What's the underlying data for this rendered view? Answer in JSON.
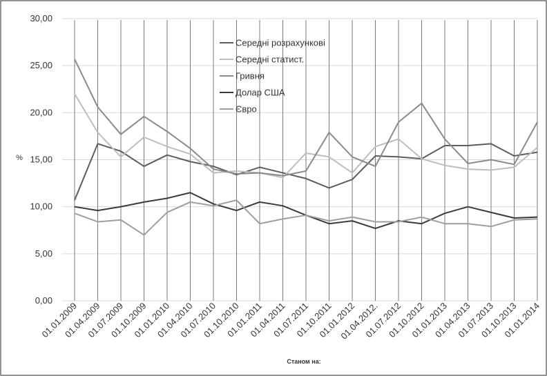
{
  "chart_data": {
    "type": "line",
    "xlabel": "Станом на:",
    "ylabel": "%",
    "ylim": [
      0,
      30
    ],
    "yticks": [
      "0,00",
      "5,00",
      "10,00",
      "15,00",
      "20,00",
      "25,00",
      "30,00"
    ],
    "categories": [
      "01.01.2009",
      "01.04.2009",
      "01.07.2009",
      "01.10.2009",
      "01.01.2010",
      "01.04.2010",
      "01.07.2010",
      "01.10.2010",
      "01.01.2011",
      "01.04.2011",
      "01.07.2011",
      "01.10.2011",
      "01.01.2012",
      "01.04.2012.",
      "01.07.2012",
      "01.10.2012",
      "01.01.2013",
      "01.04.2013",
      "01.07.2013",
      "01.10.2013",
      "01.01.2014"
    ],
    "grid": true,
    "legend_position": "top-center",
    "series": [
      {
        "name": "Середні розрахункові",
        "color": "#5c5c5c",
        "values": [
          10.7,
          16.7,
          15.9,
          14.3,
          15.5,
          14.8,
          14.3,
          13.4,
          14.2,
          13.6,
          13.0,
          12.0,
          12.9,
          15.4,
          15.3,
          15.1,
          16.5,
          16.5,
          16.7,
          15.4,
          15.8
        ]
      },
      {
        "name": "Середні статист.",
        "color": "#bdbdbd",
        "values": [
          22.0,
          17.9,
          15.3,
          17.4,
          16.4,
          15.6,
          13.6,
          13.8,
          13.6,
          13.1,
          15.7,
          15.3,
          13.6,
          16.4,
          17.2,
          15.1,
          14.4,
          14.0,
          13.9,
          14.2,
          16.3
        ]
      },
      {
        "name": "Гривня",
        "color": "#8a8a8a",
        "values": [
          25.7,
          20.6,
          17.7,
          19.6,
          18.0,
          16.2,
          14.0,
          13.5,
          13.6,
          13.3,
          13.8,
          17.9,
          15.3,
          14.3,
          19.0,
          21.0,
          17.2,
          14.6,
          15.0,
          14.5,
          19.0
        ]
      },
      {
        "name": "Долар США",
        "color": "#3a3a3a",
        "values": [
          10.0,
          9.6,
          10.0,
          10.5,
          10.9,
          11.5,
          10.3,
          9.6,
          10.5,
          10.1,
          9.1,
          8.2,
          8.5,
          7.7,
          8.5,
          8.2,
          9.3,
          10.0,
          9.4,
          8.8,
          8.9
        ]
      },
      {
        "name": "Євро",
        "color": "#9e9e9e",
        "values": [
          9.3,
          8.4,
          8.6,
          7.0,
          9.4,
          10.5,
          10.1,
          10.7,
          8.2,
          8.7,
          9.1,
          8.5,
          8.9,
          8.4,
          8.4,
          8.9,
          8.2,
          8.2,
          7.9,
          8.6,
          8.7
        ]
      }
    ]
  }
}
